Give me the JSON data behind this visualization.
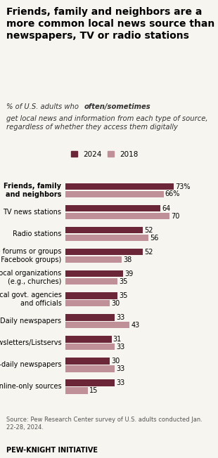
{
  "title": "Friends, family and neighbors are a\nmore common local news source than\nnewspapers, TV or radio stations",
  "subtitle": "% of U.S. adults who often/sometimes get local news\nand information from each type of source, regardless of\nwhether they access them digitally",
  "categories": [
    "Friends, family\nand neighbors",
    "TV news stations",
    "Radio stations",
    "Online forums or groups\n(e.g., Facebook groups)",
    "Local organizations\n(e.g., churches)",
    "Local govt. agencies\nand officials",
    "Daily newspapers",
    "Newsletters/Listservs",
    "Non-daily newspapers",
    "Other online-only sources"
  ],
  "values_2024": [
    73,
    64,
    52,
    52,
    39,
    35,
    33,
    31,
    30,
    33
  ],
  "values_2018": [
    66,
    70,
    56,
    38,
    35,
    30,
    43,
    33,
    33,
    15
  ],
  "color_2024": "#6b2737",
  "color_2018": "#c09098",
  "legend_2024": "2024",
  "legend_2018": "2018",
  "source_text": "Source: Pew Research Center survey of U.S. adults conducted Jan.\n22-28, 2024.",
  "footer_text": "PEW-KNIGHT INITIATIVE",
  "background_color": "#f7f5f0",
  "xlim": [
    0,
    85
  ]
}
